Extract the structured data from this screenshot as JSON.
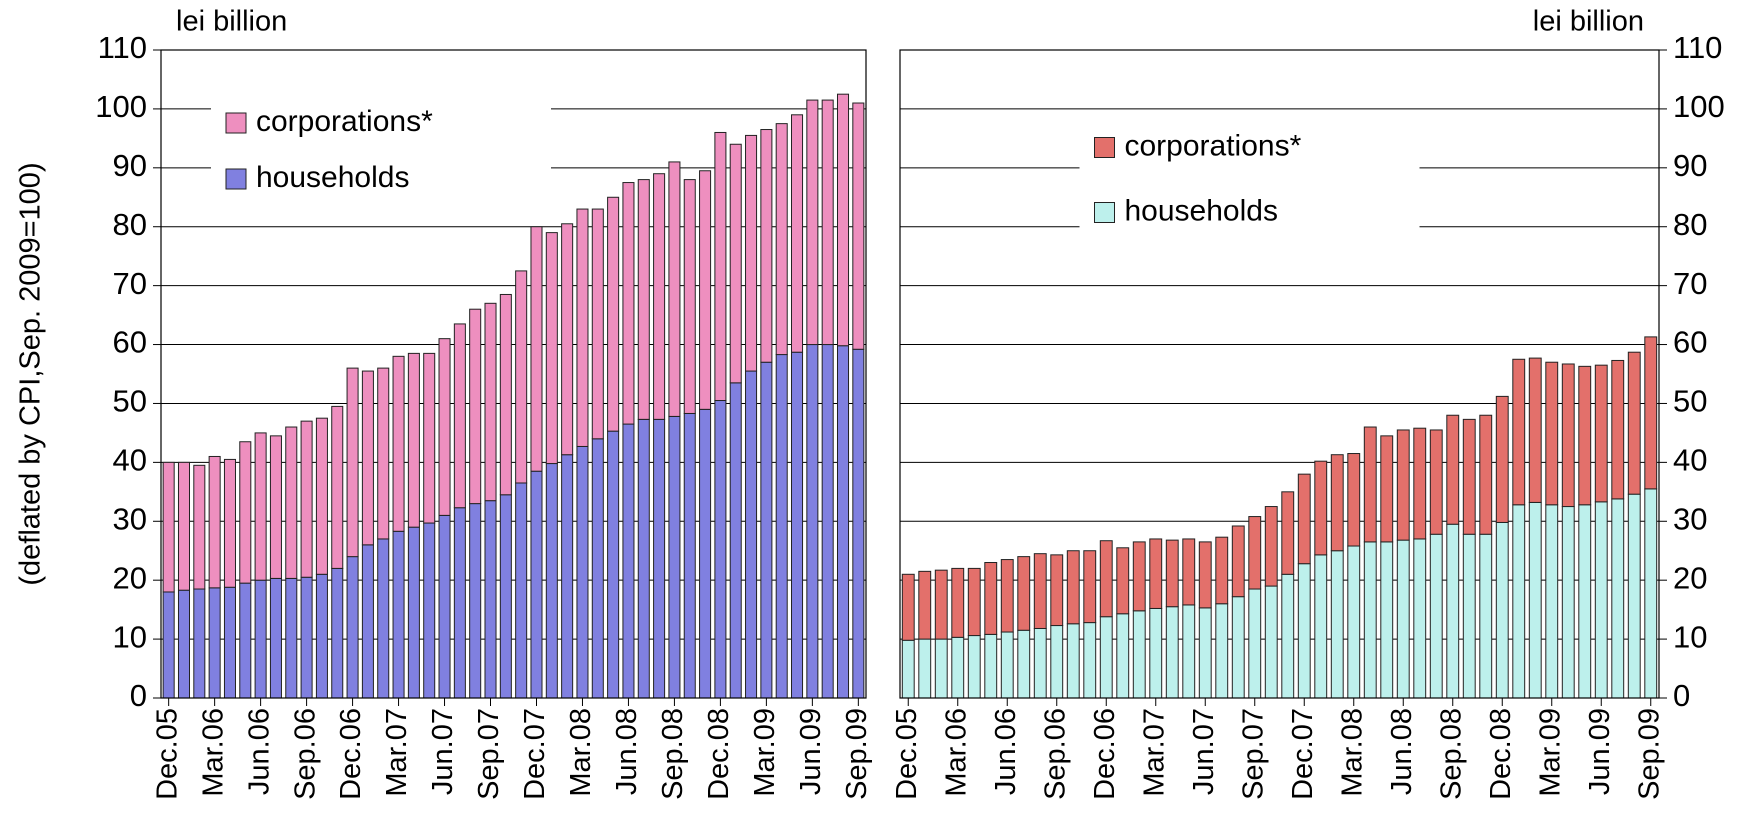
{
  "chart_data": [
    {
      "type": "stacked_bar",
      "units": "lei billion",
      "ylabel": "(deflated by CPI,Sep. 2009=100)",
      "categories": [
        "Dec.05",
        null,
        null,
        "Mar.06",
        null,
        null,
        "Jun.06",
        null,
        null,
        "Sep.06",
        null,
        null,
        "Dec.06",
        null,
        null,
        "Mar.07",
        null,
        null,
        "Jun.07",
        null,
        null,
        "Sep.07",
        null,
        null,
        "Dec.07",
        null,
        null,
        "Mar.08",
        null,
        null,
        "Jun.08",
        null,
        null,
        "Sep.08",
        null,
        null,
        "Dec.08",
        null,
        null,
        "Mar.09",
        null,
        null,
        "Jun.09",
        null,
        null,
        "Sep.09"
      ],
      "series": [
        {
          "name": "households",
          "color": "#8080e0",
          "values": [
            18,
            18.3,
            18.5,
            18.7,
            18.8,
            19.5,
            20,
            20.3,
            20.3,
            20.5,
            21,
            22,
            24,
            26,
            27,
            28.3,
            29,
            29.7,
            31,
            32.3,
            33,
            33.5,
            34.5,
            36.5,
            38.5,
            39.8,
            41.3,
            42.7,
            44,
            45.3,
            46.5,
            47.3,
            47.3,
            47.8,
            48.3,
            49,
            50.5,
            53.5,
            55.5,
            57,
            58.3,
            58.7,
            60,
            60,
            59.8,
            59.2
          ]
        },
        {
          "name": "corporations*",
          "color": "#ee8fbf",
          "values": [
            22,
            21.7,
            21,
            22.3,
            21.7,
            24,
            25,
            24.2,
            25.7,
            26.5,
            26.5,
            27.5,
            32,
            29.5,
            29,
            29.7,
            29.5,
            28.8,
            30,
            31.2,
            33,
            33.5,
            34,
            36,
            41.5,
            39.2,
            39.2,
            40.3,
            39,
            39.7,
            41,
            40.7,
            41.7,
            43.2,
            39.7,
            40.5,
            45.5,
            40.5,
            40,
            39.5,
            39.2,
            40.3,
            41.5,
            41.5,
            42.7,
            41.8
          ]
        }
      ],
      "ylim": [
        0,
        110
      ],
      "yticks": [
        0,
        10,
        20,
        30,
        40,
        50,
        60,
        70,
        80,
        90,
        100,
        110
      ],
      "grid": true,
      "legend": "upper left",
      "y_axis_side": "left"
    },
    {
      "type": "stacked_bar",
      "units": "lei billion",
      "categories": [
        "Dec.05",
        null,
        null,
        "Mar.06",
        null,
        null,
        "Jun.06",
        null,
        null,
        "Sep.06",
        null,
        null,
        "Dec.06",
        null,
        null,
        "Mar.07",
        null,
        null,
        "Jun.07",
        null,
        null,
        "Sep.07",
        null,
        null,
        "Dec.07",
        null,
        null,
        "Mar.08",
        null,
        null,
        "Jun.08",
        null,
        null,
        "Sep.08",
        null,
        null,
        "Dec.08",
        null,
        null,
        "Mar.09",
        null,
        null,
        "Jun.09",
        null,
        null,
        "Sep.09"
      ],
      "series": [
        {
          "name": "households",
          "color": "#bdf0ec",
          "values": [
            9.8,
            10,
            10,
            10.3,
            10.6,
            10.8,
            11.2,
            11.5,
            11.8,
            12.3,
            12.6,
            12.8,
            13.8,
            14.3,
            14.8,
            15.2,
            15.5,
            15.8,
            15.3,
            16,
            17.2,
            18.5,
            19,
            21,
            22.8,
            24.3,
            25,
            25.8,
            26.5,
            26.5,
            26.8,
            27,
            27.8,
            29.5,
            27.8,
            27.8,
            29.8,
            32.8,
            33.2,
            32.8,
            32.5,
            32.8,
            33.3,
            33.8,
            34.6,
            35.5
          ]
        },
        {
          "name": "corporations*",
          "color": "#e3706b",
          "values": [
            11.2,
            11.5,
            11.7,
            11.7,
            11.4,
            12.2,
            12.3,
            12.5,
            12.7,
            12,
            12.4,
            12.2,
            12.9,
            11.2,
            11.7,
            11.8,
            11.3,
            11.2,
            11.2,
            11.3,
            12,
            12.3,
            13.5,
            14,
            15.2,
            15.9,
            16.3,
            15.7,
            19.5,
            18,
            18.7,
            18.8,
            17.7,
            18.5,
            19.5,
            20.2,
            21.4,
            24.7,
            24.5,
            24.2,
            24.2,
            23.5,
            23.2,
            23.5,
            24.1,
            25.8
          ]
        }
      ],
      "ylim": [
        0,
        110
      ],
      "yticks": [
        0,
        10,
        20,
        30,
        40,
        50,
        60,
        70,
        80,
        90,
        100,
        110
      ],
      "grid": true,
      "legend": "upper center",
      "y_axis_side": "right"
    }
  ]
}
